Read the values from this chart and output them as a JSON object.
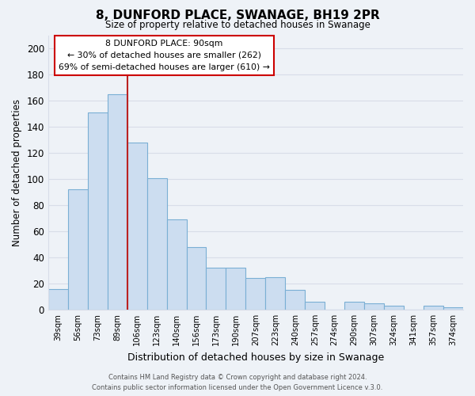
{
  "title": "8, DUNFORD PLACE, SWANAGE, BH19 2PR",
  "subtitle": "Size of property relative to detached houses in Swanage",
  "xlabel": "Distribution of detached houses by size in Swanage",
  "ylabel": "Number of detached properties",
  "bar_labels": [
    "39sqm",
    "56sqm",
    "73sqm",
    "89sqm",
    "106sqm",
    "123sqm",
    "140sqm",
    "156sqm",
    "173sqm",
    "190sqm",
    "207sqm",
    "223sqm",
    "240sqm",
    "257sqm",
    "274sqm",
    "290sqm",
    "307sqm",
    "324sqm",
    "341sqm",
    "357sqm",
    "374sqm"
  ],
  "bar_values": [
    16,
    92,
    151,
    165,
    128,
    101,
    69,
    48,
    32,
    32,
    24,
    25,
    15,
    6,
    0,
    6,
    5,
    3,
    0,
    3,
    2
  ],
  "bar_color": "#ccddf0",
  "bar_edge_color": "#7aafd4",
  "highlight_bar_index": 3,
  "highlight_line_color": "#bb2222",
  "ylim": [
    0,
    210
  ],
  "yticks": [
    0,
    20,
    40,
    60,
    80,
    100,
    120,
    140,
    160,
    180,
    200
  ],
  "annotation_title": "8 DUNFORD PLACE: 90sqm",
  "annotation_line1": "← 30% of detached houses are smaller (262)",
  "annotation_line2": "69% of semi-detached houses are larger (610) →",
  "annotation_box_edge": "#cc0000",
  "footer_line1": "Contains HM Land Registry data © Crown copyright and database right 2024.",
  "footer_line2": "Contains public sector information licensed under the Open Government Licence v.3.0.",
  "background_color": "#eef2f7",
  "grid_color": "#d8dde8"
}
